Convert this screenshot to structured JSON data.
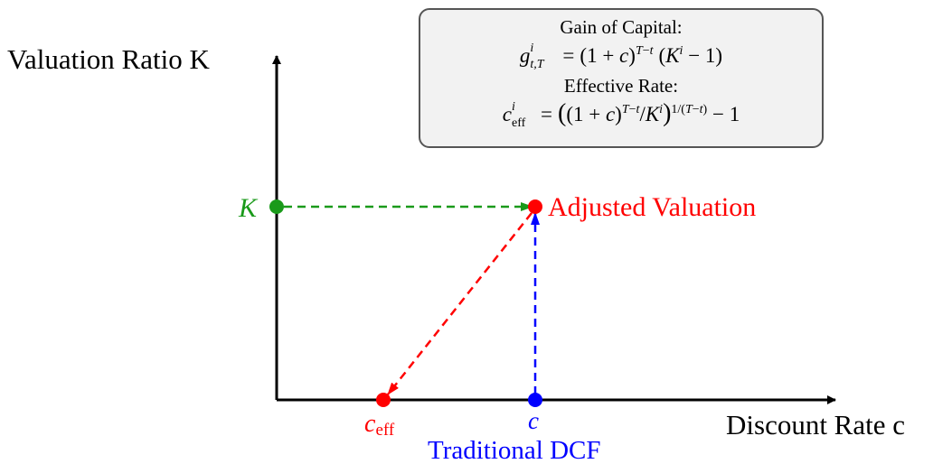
{
  "axes": {
    "y_label": "Valuation Ratio K",
    "x_label": "Discount Rate c"
  },
  "points": {
    "k_label": "K",
    "adjusted_label": "Adjusted Valuation",
    "c_label": "c",
    "ceff_label": "c",
    "ceff_subscript": "eff",
    "dcf_label": "Traditional DCF"
  },
  "formula_box": {
    "gain_heading": "Gain of Capital:",
    "gain_formula": "g^i_{t,T} = (1 + c)^{T−t} (K^i − 1)",
    "rate_heading": "Effective Rate:",
    "rate_formula": "c^i_eff = ((1 + c)^{T−t}/K^i)^{1/(T−t)} − 1"
  },
  "colors": {
    "green": "#1a9a1a",
    "red": "#ff0000",
    "blue": "#0000ff",
    "axis": "#000000"
  }
}
